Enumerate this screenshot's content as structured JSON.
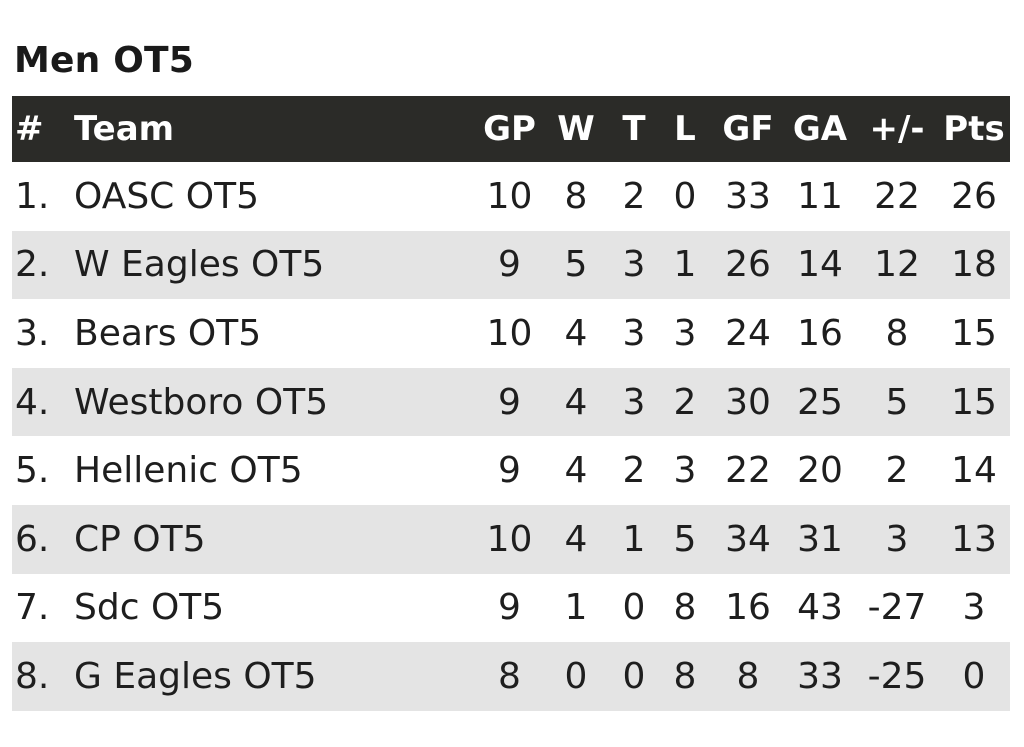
{
  "title": "Men OT5",
  "columns": [
    "#",
    "Team",
    "GP",
    "W",
    "T",
    "L",
    "GF",
    "GA",
    "+/-",
    "Pts"
  ],
  "rows": [
    {
      "rank": "1.",
      "team": "OASC OT5",
      "gp": "10",
      "w": "8",
      "t": "2",
      "l": "0",
      "gf": "33",
      "ga": "11",
      "diff": "22",
      "pts": "26"
    },
    {
      "rank": "2.",
      "team": "W Eagles OT5",
      "gp": "9",
      "w": "5",
      "t": "3",
      "l": "1",
      "gf": "26",
      "ga": "14",
      "diff": "12",
      "pts": "18"
    },
    {
      "rank": "3.",
      "team": "Bears OT5",
      "gp": "10",
      "w": "4",
      "t": "3",
      "l": "3",
      "gf": "24",
      "ga": "16",
      "diff": "8",
      "pts": "15"
    },
    {
      "rank": "4.",
      "team": "Westboro OT5",
      "gp": "9",
      "w": "4",
      "t": "3",
      "l": "2",
      "gf": "30",
      "ga": "25",
      "diff": "5",
      "pts": "15"
    },
    {
      "rank": "5.",
      "team": "Hellenic OT5",
      "gp": "9",
      "w": "4",
      "t": "2",
      "l": "3",
      "gf": "22",
      "ga": "20",
      "diff": "2",
      "pts": "14"
    },
    {
      "rank": "6.",
      "team": "CP OT5",
      "gp": "10",
      "w": "4",
      "t": "1",
      "l": "5",
      "gf": "34",
      "ga": "31",
      "diff": "3",
      "pts": "13"
    },
    {
      "rank": "7.",
      "team": "Sdc OT5",
      "gp": "9",
      "w": "1",
      "t": "0",
      "l": "8",
      "gf": "16",
      "ga": "43",
      "diff": "-27",
      "pts": "3"
    },
    {
      "rank": "8.",
      "team": "G Eagles OT5",
      "gp": "8",
      "w": "0",
      "t": "0",
      "l": "8",
      "gf": "8",
      "ga": "33",
      "diff": "-25",
      "pts": "0"
    }
  ]
}
